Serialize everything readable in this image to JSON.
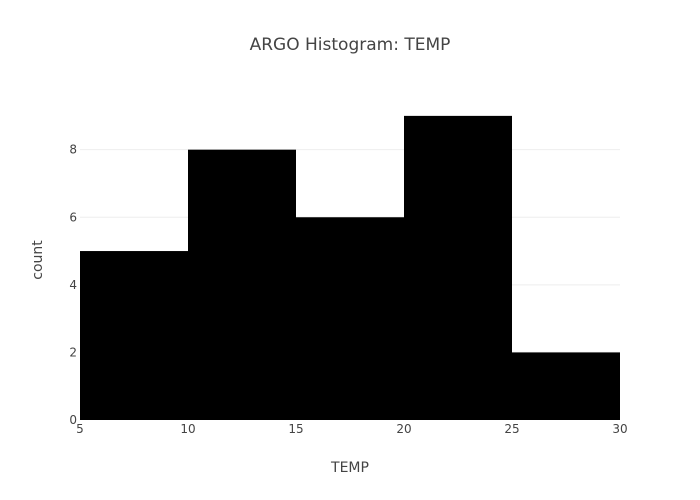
{
  "chart_data": {
    "type": "bar",
    "title": "ARGO Histogram: TEMP",
    "xlabel": "TEMP",
    "ylabel": "count",
    "bins": [
      {
        "x0": 5,
        "x1": 10,
        "count": 5
      },
      {
        "x0": 10,
        "x1": 15,
        "count": 8
      },
      {
        "x0": 15,
        "x1": 20,
        "count": 6
      },
      {
        "x0": 20,
        "x1": 25,
        "count": 9
      },
      {
        "x0": 25,
        "x1": 30,
        "count": 2
      }
    ],
    "xlim": [
      5,
      30
    ],
    "ylim": [
      0,
      9.47
    ],
    "x_ticks": [
      "5",
      "10",
      "15",
      "20",
      "25",
      "30"
    ],
    "y_ticks": [
      "0",
      "2",
      "4",
      "6",
      "8"
    ],
    "grid": true,
    "legend": "none",
    "bar_color": "#000000",
    "grid_color": "#eeeeee",
    "text_color": "#444444"
  }
}
